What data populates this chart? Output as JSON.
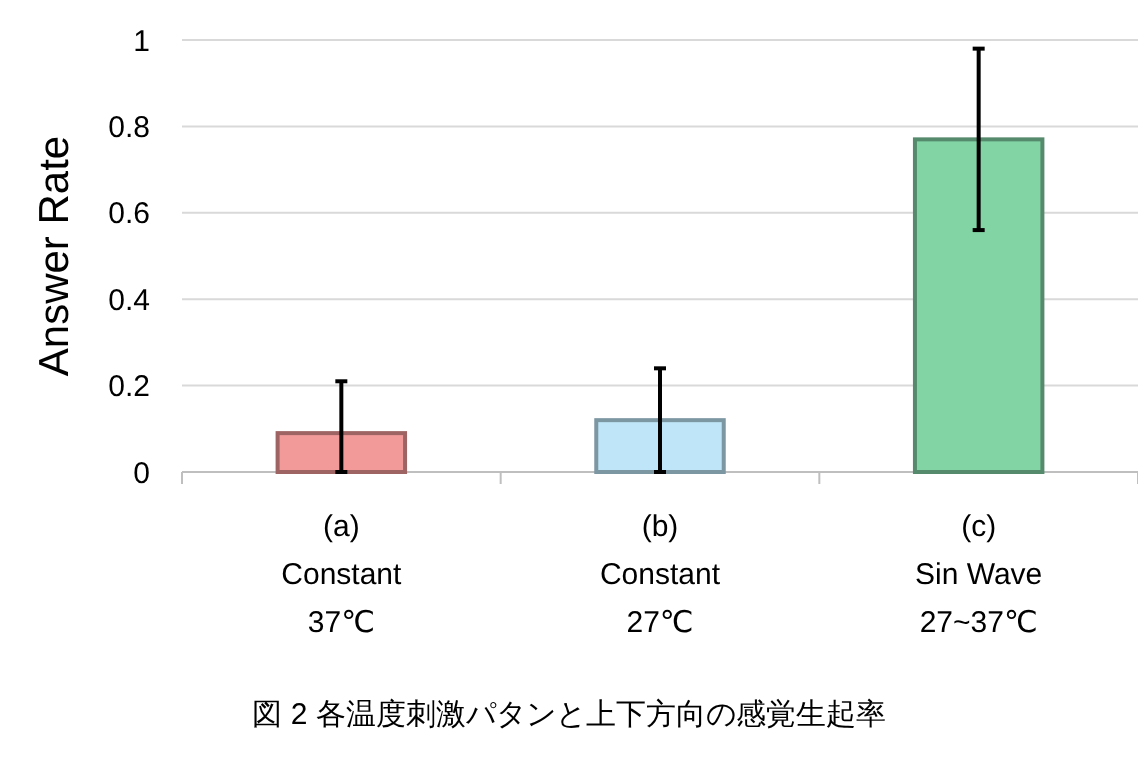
{
  "chart_data": {
    "type": "bar",
    "ylabel": "Answer Rate",
    "categories": [
      "(a)\nConstant\n37℃",
      "(b)\nConstant\n27℃",
      "(c)\nSin Wave\n27~37℃"
    ],
    "values": [
      0.09,
      0.12,
      0.77
    ],
    "colors": [
      "#f29a9a",
      "#bfe6f8",
      "#82d4a5"
    ],
    "errors": [
      [
        0,
        0.21
      ],
      [
        0,
        0.24
      ],
      [
        0.56,
        0.98
      ]
    ],
    "ylim": [
      0,
      1
    ],
    "yticks": [
      0,
      {
        "value": 0.2,
        "label": "0.2"
      },
      {
        "value": 0.4,
        "label": "0.4"
      },
      {
        "value": 0.6,
        "label": "0.6"
      },
      {
        "value": 0.8,
        "label": "0.8"
      },
      1
    ],
    "grid": "y",
    "annotations": [
      "図 2 各温度刺激パタンと上下方向の感覚生起率"
    ]
  }
}
